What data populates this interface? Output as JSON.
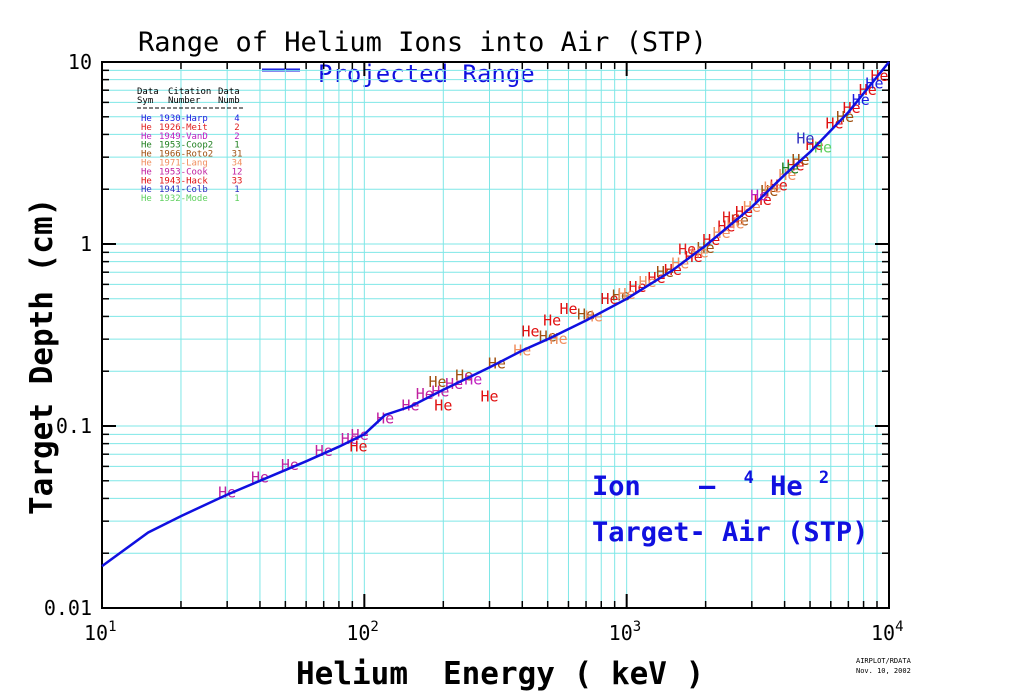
{
  "chart_data": {
    "type": "scatter",
    "title": "Range of Helium Ions into Air (STP)",
    "xlabel_word1": "Helium",
    "xlabel_word2": "Energy ( keV )",
    "ylabel": "Target Depth (cm)",
    "x_scale": "log",
    "y_scale": "log",
    "xlim": [
      10,
      10000
    ],
    "ylim": [
      0.01,
      10
    ],
    "grid": true,
    "x_ticks": [
      {
        "base": "10",
        "exp": "1"
      },
      {
        "base": "10",
        "exp": "2"
      },
      {
        "base": "10",
        "exp": "3"
      },
      {
        "base": "10",
        "exp": "4"
      }
    ],
    "y_ticks": [
      "0.01",
      "0.1",
      "1",
      "10"
    ],
    "line_series": {
      "name": "Projected Range",
      "color": "#1010e0",
      "points": [
        [
          10,
          0.017
        ],
        [
          15,
          0.026
        ],
        [
          20,
          0.032
        ],
        [
          30,
          0.042
        ],
        [
          40,
          0.05
        ],
        [
          60,
          0.064
        ],
        [
          80,
          0.077
        ],
        [
          100,
          0.09
        ],
        [
          120,
          0.115
        ],
        [
          150,
          0.128
        ],
        [
          200,
          0.158
        ],
        [
          300,
          0.21
        ],
        [
          400,
          0.26
        ],
        [
          500,
          0.3
        ],
        [
          700,
          0.38
        ],
        [
          1000,
          0.5
        ],
        [
          1500,
          0.72
        ],
        [
          2000,
          0.98
        ],
        [
          3000,
          1.6
        ],
        [
          4000,
          2.4
        ],
        [
          5000,
          3.2
        ],
        [
          7000,
          5.3
        ],
        [
          10000,
          10.0
        ]
      ]
    },
    "table_headers": [
      {
        "line1": "Data",
        "line2": "Sym"
      },
      {
        "line1": "Citation",
        "line2": "Number"
      },
      {
        "line1": "Data",
        "line2": "Numb"
      }
    ],
    "marker_symbol": "He",
    "datasets": [
      {
        "citation": "1930-Harp",
        "count": "4",
        "color": "#1a1ae0"
      },
      {
        "citation": "1926-Meit",
        "count": "2",
        "color": "#e02020"
      },
      {
        "citation": "1949-VanD",
        "count": "2",
        "color": "#c020c0"
      },
      {
        "citation": "1953-Coop2",
        "count": "1",
        "color": "#208020"
      },
      {
        "citation": "1966-Roto2",
        "count": "31",
        "color": "#a05010"
      },
      {
        "citation": "1971-Lang",
        "count": "34",
        "color": "#f09060"
      },
      {
        "citation": "1953-Cook",
        "count": "12",
        "color": "#c020a0"
      },
      {
        "citation": "1943-Hack",
        "count": "33",
        "color": "#e01010"
      },
      {
        "citation": "1941-Colb",
        "count": "1",
        "color": "#3030c0"
      },
      {
        "citation": "1932-Mode",
        "count": "1",
        "color": "#60d060"
      }
    ],
    "points": [
      {
        "x": 30,
        "y": 0.043,
        "set": 6
      },
      {
        "x": 40,
        "y": 0.052,
        "set": 6
      },
      {
        "x": 52,
        "y": 0.061,
        "set": 6
      },
      {
        "x": 70,
        "y": 0.073,
        "set": 6
      },
      {
        "x": 88,
        "y": 0.085,
        "set": 6
      },
      {
        "x": 96,
        "y": 0.089,
        "set": 6
      },
      {
        "x": 120,
        "y": 0.11,
        "set": 6
      },
      {
        "x": 150,
        "y": 0.13,
        "set": 6
      },
      {
        "x": 170,
        "y": 0.15,
        "set": 6
      },
      {
        "x": 195,
        "y": 0.155,
        "set": 6
      },
      {
        "x": 220,
        "y": 0.17,
        "set": 6
      },
      {
        "x": 95,
        "y": 0.077,
        "set": 7
      },
      {
        "x": 200,
        "y": 0.13,
        "set": 7
      },
      {
        "x": 300,
        "y": 0.145,
        "set": 7
      },
      {
        "x": 430,
        "y": 0.33,
        "set": 7
      },
      {
        "x": 520,
        "y": 0.38,
        "set": 7
      },
      {
        "x": 600,
        "y": 0.44,
        "set": 7
      },
      {
        "x": 860,
        "y": 0.5,
        "set": 7
      },
      {
        "x": 1100,
        "y": 0.58,
        "set": 7
      },
      {
        "x": 1300,
        "y": 0.65,
        "set": 7
      },
      {
        "x": 1500,
        "y": 0.72,
        "set": 7
      },
      {
        "x": 1800,
        "y": 0.85,
        "set": 7
      },
      {
        "x": 2100,
        "y": 1.05,
        "set": 7
      },
      {
        "x": 2400,
        "y": 1.25,
        "set": 7
      },
      {
        "x": 2800,
        "y": 1.5,
        "set": 7
      },
      {
        "x": 3300,
        "y": 1.75,
        "set": 7
      },
      {
        "x": 3800,
        "y": 2.1,
        "set": 7
      },
      {
        "x": 4400,
        "y": 2.7,
        "set": 7
      },
      {
        "x": 5200,
        "y": 3.5,
        "set": 7
      },
      {
        "x": 6200,
        "y": 4.6,
        "set": 7
      },
      {
        "x": 7200,
        "y": 5.6,
        "set": 7
      },
      {
        "x": 8300,
        "y": 7.0,
        "set": 7
      },
      {
        "x": 9200,
        "y": 8.4,
        "set": 7
      },
      {
        "x": 190,
        "y": 0.175,
        "set": 4
      },
      {
        "x": 240,
        "y": 0.19,
        "set": 4
      },
      {
        "x": 320,
        "y": 0.22,
        "set": 4
      },
      {
        "x": 500,
        "y": 0.31,
        "set": 4
      },
      {
        "x": 700,
        "y": 0.41,
        "set": 4
      },
      {
        "x": 950,
        "y": 0.52,
        "set": 4
      },
      {
        "x": 1400,
        "y": 0.7,
        "set": 4
      },
      {
        "x": 2000,
        "y": 0.95,
        "set": 4
      },
      {
        "x": 2700,
        "y": 1.35,
        "set": 4
      },
      {
        "x": 3500,
        "y": 1.95,
        "set": 4
      },
      {
        "x": 4600,
        "y": 2.9,
        "set": 4
      },
      {
        "x": 6800,
        "y": 5.0,
        "set": 4
      },
      {
        "x": 400,
        "y": 0.26,
        "set": 5
      },
      {
        "x": 550,
        "y": 0.3,
        "set": 5
      },
      {
        "x": 750,
        "y": 0.4,
        "set": 5
      },
      {
        "x": 1000,
        "y": 0.53,
        "set": 5
      },
      {
        "x": 1200,
        "y": 0.62,
        "set": 5
      },
      {
        "x": 1600,
        "y": 0.78,
        "set": 5
      },
      {
        "x": 1900,
        "y": 0.9,
        "set": 5
      },
      {
        "x": 2300,
        "y": 1.15,
        "set": 5
      },
      {
        "x": 2600,
        "y": 1.3,
        "set": 5
      },
      {
        "x": 3000,
        "y": 1.6,
        "set": 5
      },
      {
        "x": 3600,
        "y": 2.05,
        "set": 5
      },
      {
        "x": 4100,
        "y": 2.4,
        "set": 5
      },
      {
        "x": 1700,
        "y": 0.93,
        "set": 1
      },
      {
        "x": 2500,
        "y": 1.4,
        "set": 1
      },
      {
        "x": 3200,
        "y": 1.85,
        "set": 2
      },
      {
        "x": 4800,
        "y": 3.8,
        "set": 8
      },
      {
        "x": 7800,
        "y": 6.2,
        "set": 0
      },
      {
        "x": 8800,
        "y": 7.6,
        "set": 0
      },
      {
        "x": 5600,
        "y": 3.4,
        "set": 9
      },
      {
        "x": 4200,
        "y": 2.6,
        "set": 3
      },
      {
        "x": 260,
        "y": 0.18,
        "set": 2
      }
    ]
  },
  "annotation": {
    "ion_label": "Ion",
    "ion_dash": "–",
    "ion_mass": "4",
    "ion_symbol": "He",
    "ion_charge": "2",
    "target_label": "Target- Air (STP)"
  },
  "stamp": {
    "line1": "AIRPLOT/RDATA",
    "line2": "Nov. 10, 2002"
  }
}
